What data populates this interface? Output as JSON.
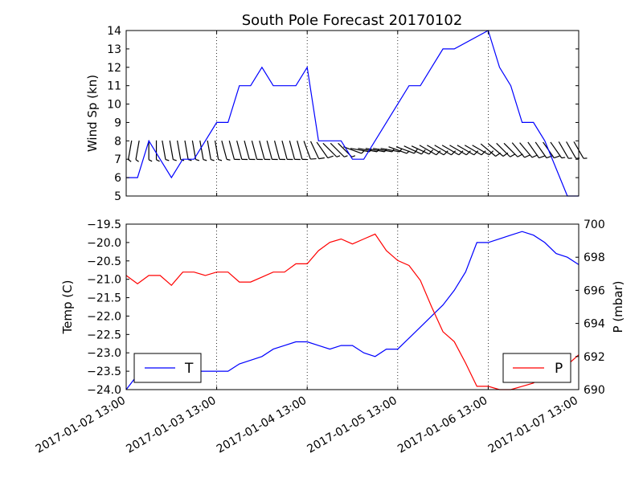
{
  "chart_data": [
    {
      "type": "line",
      "title": "South Pole Forecast 20170102",
      "ylabel": "Wind Sp (kn)",
      "ylim": [
        5,
        14
      ],
      "yticks": [
        "5",
        "6",
        "7",
        "8",
        "9",
        "10",
        "11",
        "12",
        "13",
        "14"
      ],
      "x_range": [
        "2017-01-02 13:00",
        "2017-01-07 13:00"
      ],
      "grid": "vertical dotted at day ticks",
      "series": [
        {
          "color": "#0000ff",
          "x": [
            "2017-01-02 13:00",
            "2017-01-02 16:00",
            "2017-01-02 19:00",
            "2017-01-02 22:00",
            "2017-01-03 01:00",
            "2017-01-03 04:00",
            "2017-01-03 07:00",
            "2017-01-03 10:00",
            "2017-01-03 13:00",
            "2017-01-03 16:00",
            "2017-01-03 19:00",
            "2017-01-03 22:00",
            "2017-01-04 01:00",
            "2017-01-04 04:00",
            "2017-01-04 07:00",
            "2017-01-04 10:00",
            "2017-01-04 13:00",
            "2017-01-04 16:00",
            "2017-01-04 19:00",
            "2017-01-04 22:00",
            "2017-01-05 01:00",
            "2017-01-05 04:00",
            "2017-01-05 13:00",
            "2017-01-05 16:00",
            "2017-01-05 19:00",
            "2017-01-05 22:00",
            "2017-01-06 01:00",
            "2017-01-06 04:00",
            "2017-01-06 13:00",
            "2017-01-06 16:00",
            "2017-01-06 19:00",
            "2017-01-06 22:00",
            "2017-01-07 01:00",
            "2017-01-07 04:00",
            "2017-01-07 10:00",
            "2017-01-07 13:00"
          ],
          "values": [
            6,
            6,
            8,
            7,
            6,
            7,
            7,
            8,
            9,
            9,
            11,
            11,
            12,
            11,
            11,
            11,
            12,
            8,
            8,
            8,
            7,
            7,
            10,
            11,
            11,
            12,
            13,
            13,
            14,
            12,
            11,
            9,
            9,
            8,
            5,
            4.5
          ]
        }
      ],
      "wind_barbs": {
        "x": [
          "2017-01-02 14:00",
          "2017-01-02 16:00",
          "2017-01-02 19:00",
          "2017-01-02 21:00",
          "2017-01-02 23:00",
          "2017-01-03 01:00",
          "2017-01-03 03:00",
          "2017-01-03 05:00",
          "2017-01-03 07:00",
          "2017-01-03 09:00",
          "2017-01-03 11:00",
          "2017-01-03 13:00",
          "2017-01-03 15:00",
          "2017-01-03 17:00",
          "2017-01-03 19:00",
          "2017-01-03 21:00",
          "2017-01-03 23:00",
          "2017-01-04 01:00",
          "2017-01-04 03:00",
          "2017-01-04 05:00",
          "2017-01-04 07:00",
          "2017-01-04 09:00",
          "2017-01-04 11:00",
          "2017-01-04 13:00",
          "2017-01-04 15:00",
          "2017-01-04 17:00",
          "2017-01-04 19:00",
          "2017-01-04 21:00",
          "2017-01-04 23:00",
          "2017-01-05 01:00",
          "2017-01-05 03:00",
          "2017-01-05 05:00",
          "2017-01-05 07:00",
          "2017-01-05 09:00",
          "2017-01-05 11:00",
          "2017-01-05 13:00",
          "2017-01-05 15:00",
          "2017-01-05 17:00",
          "2017-01-05 19:00",
          "2017-01-05 21:00",
          "2017-01-05 23:00",
          "2017-01-06 01:00",
          "2017-01-06 03:00",
          "2017-01-06 05:00",
          "2017-01-06 07:00",
          "2017-01-06 09:00",
          "2017-01-06 11:00",
          "2017-01-06 13:00",
          "2017-01-06 15:00",
          "2017-01-06 17:00",
          "2017-01-06 19:00",
          "2017-01-06 21:00",
          "2017-01-06 23:00",
          "2017-01-07 01:00",
          "2017-01-07 03:00",
          "2017-01-07 05:00",
          "2017-01-07 07:00",
          "2017-01-07 09:00",
          "2017-01-07 11:00",
          "2017-01-07 13:00"
        ],
        "y": 7.5,
        "speed_kn": [
          6,
          7,
          8,
          8,
          7,
          6,
          7,
          7,
          7,
          8,
          8,
          9,
          9,
          10,
          10,
          11,
          11,
          11,
          11,
          11,
          11,
          12,
          12,
          12,
          11,
          10,
          9,
          8,
          8,
          7,
          7,
          7,
          7,
          8,
          8,
          9,
          10,
          11,
          11,
          11,
          12,
          12,
          13,
          13,
          13,
          14,
          14,
          14,
          13,
          13,
          12,
          12,
          11,
          11,
          10,
          10,
          9,
          9,
          9,
          8
        ],
        "dir_deg": [
          350,
          350,
          0,
          0,
          10,
          10,
          10,
          10,
          10,
          10,
          10,
          10,
          15,
          15,
          15,
          15,
          15,
          15,
          15,
          15,
          15,
          15,
          15,
          20,
          25,
          35,
          45,
          45,
          45,
          70,
          80,
          80,
          80,
          80,
          80,
          70,
          70,
          65,
          65,
          60,
          60,
          60,
          60,
          60,
          60,
          60,
          60,
          50,
          50,
          45,
          45,
          40,
          40,
          35,
          35,
          35,
          35,
          30,
          30,
          30
        ]
      }
    },
    {
      "type": "line",
      "ylabel": "Temp (C)",
      "ylim": [
        -24.0,
        -19.5
      ],
      "yticks": [
        "−24.0",
        "−23.5",
        "−23.0",
        "−22.5",
        "−22.0",
        "−21.5",
        "−21.0",
        "−20.5",
        "−20.0",
        "−19.5"
      ],
      "y2label": "P (mbar)",
      "y2lim": [
        690,
        700
      ],
      "y2ticks": [
        "690",
        "692",
        "694",
        "696",
        "698",
        "700"
      ],
      "x_range": [
        "2017-01-02 13:00",
        "2017-01-07 13:00"
      ],
      "xticks": [
        "2017-01-02 13:00",
        "2017-01-03 13:00",
        "2017-01-04 13:00",
        "2017-01-05 13:00",
        "2017-01-06 13:00",
        "2017-01-07 13:00"
      ],
      "grid": "vertical dotted at day ticks",
      "series": [
        {
          "name": "T",
          "color": "#0000ff",
          "axis": "left",
          "x": [
            "2017-01-02 13:00",
            "2017-01-02 16:00",
            "2017-01-02 19:00",
            "2017-01-02 22:00",
            "2017-01-03 01:00",
            "2017-01-03 04:00",
            "2017-01-03 07:00",
            "2017-01-03 10:00",
            "2017-01-03 13:00",
            "2017-01-03 16:00",
            "2017-01-03 19:00",
            "2017-01-03 22:00",
            "2017-01-04 01:00",
            "2017-01-04 04:00",
            "2017-01-04 07:00",
            "2017-01-04 10:00",
            "2017-01-04 13:00",
            "2017-01-04 16:00",
            "2017-01-04 19:00",
            "2017-01-04 22:00",
            "2017-01-05 01:00",
            "2017-01-05 04:00",
            "2017-01-05 07:00",
            "2017-01-05 10:00",
            "2017-01-05 13:00",
            "2017-01-05 16:00",
            "2017-01-05 19:00",
            "2017-01-05 22:00",
            "2017-01-06 01:00",
            "2017-01-06 04:00",
            "2017-01-06 07:00",
            "2017-01-06 10:00",
            "2017-01-06 13:00",
            "2017-01-06 16:00",
            "2017-01-06 19:00",
            "2017-01-06 22:00",
            "2017-01-07 01:00",
            "2017-01-07 04:00",
            "2017-01-07 07:00",
            "2017-01-07 10:00",
            "2017-01-07 13:00"
          ],
          "values": [
            -24.0,
            -23.6,
            -23.5,
            -23.5,
            -23.5,
            -23.5,
            -23.5,
            -23.5,
            -23.5,
            -23.5,
            -23.3,
            -23.2,
            -23.1,
            -22.9,
            -22.8,
            -22.7,
            -22.7,
            -22.8,
            -22.9,
            -22.8,
            -22.8,
            -23.0,
            -23.1,
            -22.9,
            -22.9,
            -22.6,
            -22.3,
            -22.0,
            -21.7,
            -21.3,
            -20.8,
            -20.0,
            -20.0,
            -19.9,
            -19.8,
            -19.7,
            -19.8,
            -20.0,
            -20.3,
            -20.4,
            -20.6
          ]
        },
        {
          "name": "P",
          "color": "#ff0000",
          "axis": "right",
          "x": [
            "2017-01-02 13:00",
            "2017-01-02 16:00",
            "2017-01-02 19:00",
            "2017-01-02 22:00",
            "2017-01-03 01:00",
            "2017-01-03 04:00",
            "2017-01-03 07:00",
            "2017-01-03 10:00",
            "2017-01-03 13:00",
            "2017-01-03 16:00",
            "2017-01-03 19:00",
            "2017-01-03 22:00",
            "2017-01-04 01:00",
            "2017-01-04 04:00",
            "2017-01-04 07:00",
            "2017-01-04 10:00",
            "2017-01-04 13:00",
            "2017-01-04 16:00",
            "2017-01-04 19:00",
            "2017-01-04 22:00",
            "2017-01-05 01:00",
            "2017-01-05 04:00",
            "2017-01-05 07:00",
            "2017-01-05 10:00",
            "2017-01-05 13:00",
            "2017-01-05 16:00",
            "2017-01-05 19:00",
            "2017-01-05 22:00",
            "2017-01-06 01:00",
            "2017-01-06 04:00",
            "2017-01-06 07:00",
            "2017-01-06 10:00",
            "2017-01-06 13:00",
            "2017-01-06 16:00",
            "2017-01-06 19:00",
            "2017-01-06 22:00",
            "2017-01-07 01:00",
            "2017-01-07 04:00",
            "2017-01-07 07:00",
            "2017-01-07 10:00",
            "2017-01-07 13:00"
          ],
          "values": [
            696.9,
            696.4,
            696.9,
            696.9,
            696.3,
            697.1,
            697.1,
            696.9,
            697.1,
            697.1,
            696.5,
            696.5,
            696.8,
            697.1,
            697.1,
            697.6,
            697.6,
            698.4,
            698.9,
            699.1,
            698.8,
            699.1,
            699.4,
            698.4,
            697.8,
            697.5,
            696.6,
            695.0,
            693.5,
            692.9,
            691.6,
            690.2,
            690.2,
            690.0,
            690.0,
            690.2,
            690.4,
            691.0,
            691.5,
            691.5,
            692.1
          ]
        }
      ],
      "legends": [
        {
          "label": "T",
          "color": "#0000ff",
          "placement": "lower-left"
        },
        {
          "label": "P",
          "color": "#ff0000",
          "placement": "lower-right"
        }
      ]
    }
  ]
}
